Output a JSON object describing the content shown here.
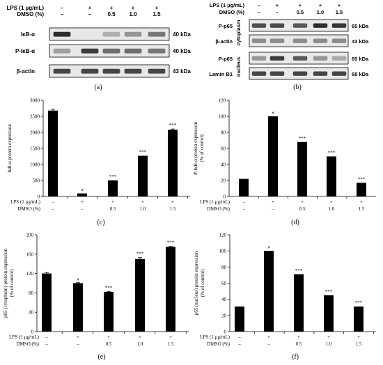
{
  "treatments": {
    "lps_label": "LPS (1 µg/mL)",
    "dmso_label": "DMSO (%)",
    "lps": [
      "–",
      "+",
      "+",
      "+",
      "+"
    ],
    "dmso": [
      "–",
      "–",
      "0.5",
      "1.0",
      "1.5"
    ]
  },
  "blots": {
    "a": {
      "rows": [
        {
          "name": "IκB-α",
          "kda": "40 kDa"
        },
        {
          "name": "P-IκB-α",
          "kda": "40 kDa"
        },
        {
          "name": "β-actin",
          "kda": "43 kDa"
        }
      ]
    },
    "b": {
      "groups": [
        "cytoplasm",
        "nucleus"
      ],
      "rows": [
        {
          "name": "P-p65",
          "kda": "65 kDa"
        },
        {
          "name": "β-actin",
          "kda": "43 kDa"
        },
        {
          "name": "P-p65",
          "kda": "65 kDa"
        },
        {
          "name": "Lamin B1",
          "kda": "68 kDa"
        }
      ]
    }
  },
  "panel_labels": [
    "(a)",
    "(b)",
    "(c)",
    "(d)",
    "(e)",
    "(f)"
  ],
  "significance": {
    "hash": "#",
    "star": "***"
  },
  "chart_data": [
    {
      "type": "bar",
      "panel": "(c)",
      "ylabel": "IκB-α protein expression",
      "ylim": [
        0,
        3000
      ],
      "yticks": [
        0,
        500,
        1000,
        1500,
        2000,
        2500,
        3000
      ],
      "values": [
        2680,
        95,
        500,
        1270,
        2080
      ],
      "errors": [
        40,
        0,
        0,
        0,
        25
      ],
      "marks": [
        "",
        "#",
        "***",
        "***",
        "***"
      ]
    },
    {
      "type": "bar",
      "panel": "(d)",
      "ylabel": "P-IκB-α protein expression",
      "ylabel2": "(% of control)",
      "ylim": [
        0,
        120
      ],
      "yticks": [
        0,
        20,
        40,
        60,
        80,
        100,
        120
      ],
      "values": [
        22,
        100,
        68,
        50,
        17
      ],
      "errors": [
        0,
        0,
        0,
        0,
        0
      ],
      "marks": [
        "",
        "#",
        "***",
        "***",
        "***"
      ]
    },
    {
      "type": "bar",
      "panel": "(e)",
      "ylabel": "p65 (cytoplasm) protein expression",
      "ylabel2": "(% of control)",
      "ylim": [
        0,
        200
      ],
      "yticks": [
        0,
        40,
        80,
        120,
        160,
        200
      ],
      "values": [
        120,
        100,
        82,
        150,
        175
      ],
      "errors": [
        2,
        1,
        1,
        3,
        1
      ],
      "marks": [
        "",
        "#",
        "***",
        "***",
        "***"
      ]
    },
    {
      "type": "bar",
      "panel": "(f)",
      "ylabel": "p65 (nucleus) protein expression",
      "ylabel2": "(% of control)",
      "ylim": [
        0,
        120
      ],
      "yticks": [
        0,
        20,
        40,
        60,
        80,
        100,
        120
      ],
      "values": [
        31,
        100,
        71,
        45,
        31
      ],
      "errors": [
        0,
        0,
        0,
        0,
        0
      ],
      "marks": [
        "",
        "#",
        "***",
        "***",
        "***"
      ]
    }
  ]
}
